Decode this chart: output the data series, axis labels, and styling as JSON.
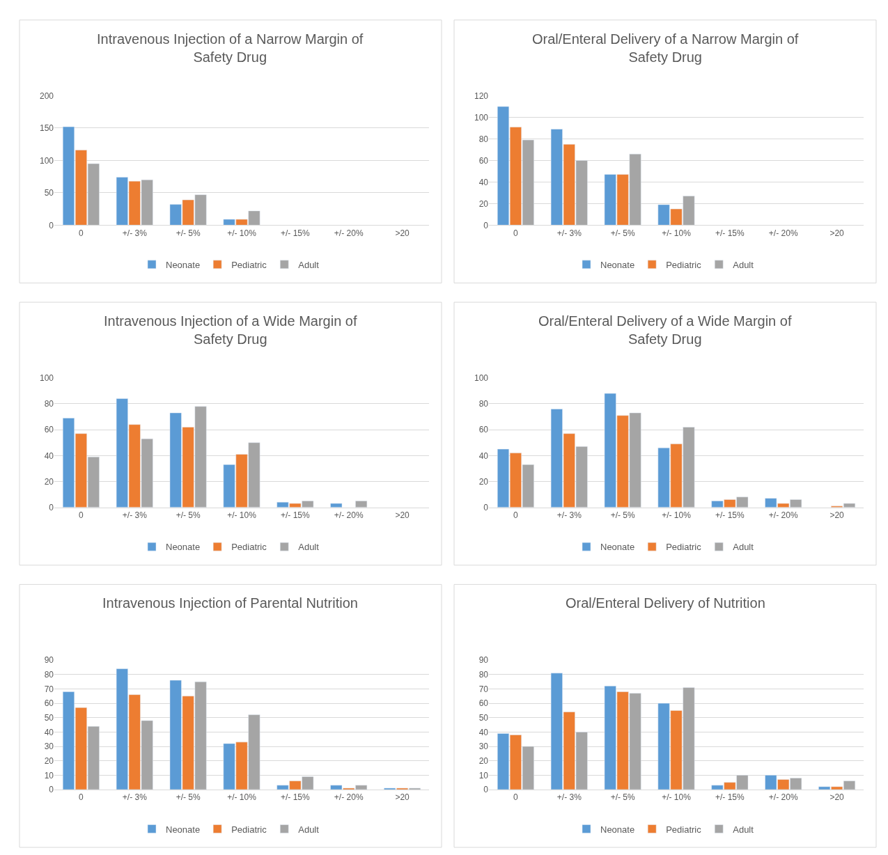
{
  "chart_data": [
    {
      "type": "bar",
      "title": "Intravenous Injection of a Narrow Margin of Safety Drug",
      "categories": [
        "0",
        "+/- 3%",
        "+/- 5%",
        "+/- 10%",
        "+/- 15%",
        "+/- 20%",
        ">20"
      ],
      "ylim": [
        0,
        200
      ],
      "yticks": [
        0,
        50,
        100,
        150,
        200
      ],
      "grid": "y",
      "legend": "bottom",
      "series": [
        {
          "name": "Neonate",
          "color": "#5b9bd5",
          "values": [
            152,
            74,
            32,
            9,
            null,
            null,
            null
          ]
        },
        {
          "name": "Pediatric",
          "color": "#ed7d31",
          "values": [
            116,
            68,
            39,
            9,
            null,
            null,
            null
          ]
        },
        {
          "name": "Adult",
          "color": "#a5a5a5",
          "values": [
            95,
            70,
            47,
            22,
            null,
            null,
            null
          ]
        }
      ]
    },
    {
      "type": "bar",
      "title": "Oral/Enteral Delivery of a Narrow Margin of Safety Drug",
      "categories": [
        "0",
        "+/- 3%",
        "+/- 5%",
        "+/- 10%",
        "+/- 15%",
        "+/- 20%",
        ">20"
      ],
      "ylim": [
        0,
        120
      ],
      "yticks": [
        0,
        20,
        40,
        60,
        80,
        100,
        120
      ],
      "grid": "y",
      "legend": "bottom",
      "series": [
        {
          "name": "Neonate",
          "color": "#5b9bd5",
          "values": [
            110,
            89,
            47,
            19,
            null,
            null,
            null
          ]
        },
        {
          "name": "Pediatric",
          "color": "#ed7d31",
          "values": [
            91,
            75,
            47,
            15,
            null,
            null,
            null
          ]
        },
        {
          "name": "Adult",
          "color": "#a5a5a5",
          "values": [
            79,
            60,
            66,
            27,
            null,
            null,
            null
          ]
        }
      ]
    },
    {
      "type": "bar",
      "title": "Intravenous Injection of a Wide Margin of Safety Drug",
      "categories": [
        "0",
        "+/- 3%",
        "+/- 5%",
        "+/- 10%",
        "+/- 15%",
        "+/- 20%",
        ">20"
      ],
      "ylim": [
        0,
        100
      ],
      "yticks": [
        0,
        20,
        40,
        60,
        80,
        100
      ],
      "grid": "y",
      "legend": "bottom",
      "series": [
        {
          "name": "Neonate",
          "color": "#5b9bd5",
          "values": [
            69,
            84,
            73,
            33,
            4,
            3,
            null
          ]
        },
        {
          "name": "Pediatric",
          "color": "#ed7d31",
          "values": [
            57,
            64,
            62,
            41,
            3,
            null,
            null
          ]
        },
        {
          "name": "Adult",
          "color": "#a5a5a5",
          "values": [
            39,
            53,
            78,
            50,
            5,
            5,
            null
          ]
        }
      ]
    },
    {
      "type": "bar",
      "title": "Oral/Enteral Delivery of a Wide Margin of Safety Drug",
      "categories": [
        "0",
        "+/- 3%",
        "+/- 5%",
        "+/- 10%",
        "+/- 15%",
        "+/- 20%",
        ">20"
      ],
      "ylim": [
        0,
        100
      ],
      "yticks": [
        0,
        20,
        40,
        60,
        80,
        100
      ],
      "grid": "y",
      "legend": "bottom",
      "series": [
        {
          "name": "Neonate",
          "color": "#5b9bd5",
          "values": [
            45,
            76,
            88,
            46,
            5,
            7,
            null
          ]
        },
        {
          "name": "Pediatric",
          "color": "#ed7d31",
          "values": [
            42,
            57,
            71,
            49,
            6,
            3,
            1
          ]
        },
        {
          "name": "Adult",
          "color": "#a5a5a5",
          "values": [
            33,
            47,
            73,
            62,
            8,
            6,
            3
          ]
        }
      ]
    },
    {
      "type": "bar",
      "title": "Intravenous Injection of Parental Nutrition",
      "categories": [
        "0",
        "+/- 3%",
        "+/- 5%",
        "+/- 10%",
        "+/- 15%",
        "+/- 20%",
        ">20"
      ],
      "ylim": [
        0,
        90
      ],
      "yticks": [
        0,
        10,
        20,
        30,
        40,
        50,
        60,
        70,
        80,
        90
      ],
      "grid": "y",
      "legend": "bottom",
      "series": [
        {
          "name": "Neonate",
          "color": "#5b9bd5",
          "values": [
            68,
            84,
            76,
            32,
            3,
            3,
            1
          ]
        },
        {
          "name": "Pediatric",
          "color": "#ed7d31",
          "values": [
            57,
            66,
            65,
            33,
            6,
            1,
            1
          ]
        },
        {
          "name": "Adult",
          "color": "#a5a5a5",
          "values": [
            44,
            48,
            75,
            52,
            9,
            3,
            1
          ]
        }
      ]
    },
    {
      "type": "bar",
      "title": "Oral/Enteral Delivery of Nutrition",
      "categories": [
        "0",
        "+/- 3%",
        "+/- 5%",
        "+/- 10%",
        "+/- 15%",
        "+/- 20%",
        ">20"
      ],
      "ylim": [
        0,
        90
      ],
      "yticks": [
        0,
        10,
        20,
        30,
        40,
        50,
        60,
        70,
        80,
        90
      ],
      "grid": "y",
      "legend": "bottom",
      "series": [
        {
          "name": "Neonate",
          "color": "#5b9bd5",
          "values": [
            39,
            81,
            72,
            60,
            3,
            10,
            2
          ]
        },
        {
          "name": "Pediatric",
          "color": "#ed7d31",
          "values": [
            38,
            54,
            68,
            55,
            5,
            7,
            2
          ]
        },
        {
          "name": "Adult",
          "color": "#a5a5a5",
          "values": [
            30,
            40,
            67,
            71,
            10,
            8,
            6
          ]
        }
      ]
    }
  ]
}
